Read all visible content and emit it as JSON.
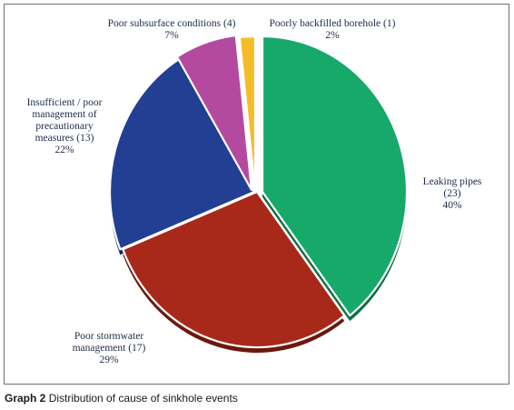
{
  "chart_data": {
    "type": "pie",
    "slices": [
      {
        "label_lines": [
          "Leaking pipes",
          "(23)",
          "40%"
        ],
        "count": 23,
        "percent": 40,
        "color": "#16a96a",
        "shade": "#0d6e44"
      },
      {
        "label_lines": [
          "Poor stormwater",
          "management (17)",
          "29%"
        ],
        "count": 17,
        "percent": 29,
        "color": "#a8291a",
        "shade": "#6b180e"
      },
      {
        "label_lines": [
          "Insufficient / poor",
          "management of",
          "precautionary",
          "measures (13)",
          "22%"
        ],
        "count": 13,
        "percent": 22,
        "color": "#223f93",
        "shade": "#132560"
      },
      {
        "label_lines": [
          "Poor subsurface conditions (4)",
          "7%"
        ],
        "count": 4,
        "percent": 7,
        "color": "#b44aa0",
        "shade": "#77296a"
      },
      {
        "label_lines": [
          "Poorly backfilled borehole (1)",
          "2%"
        ],
        "count": 1,
        "percent": 2,
        "color": "#f4bd28",
        "shade": "#b5860e"
      }
    ],
    "legend": "none"
  },
  "caption": {
    "lead": "Graph 2",
    "text": " Distribution of cause of sinkhole events"
  }
}
